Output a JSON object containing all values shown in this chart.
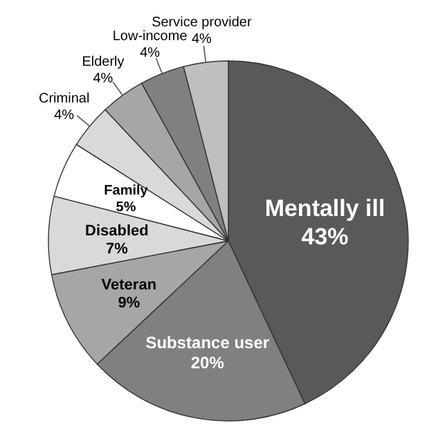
{
  "chart_data": {
    "type": "pie",
    "categories": [
      "Mentally ill",
      "Substance user",
      "Veteran",
      "Disabled",
      "Family",
      "Criminal",
      "Elderly",
      "Low-income",
      "Service provider"
    ],
    "values": [
      43,
      20,
      9,
      7,
      5,
      4,
      4,
      4,
      4
    ],
    "value_labels": [
      "43%",
      "20%",
      "9%",
      "7%",
      "5%",
      "4%",
      "4%",
      "4%",
      "4%"
    ],
    "colors": [
      "#595959",
      "#808080",
      "#a6a6a6",
      "#d9d9d9",
      "#ffffff",
      "#d9d9d9",
      "#a6a6a6",
      "#808080",
      "#bfbfbf"
    ],
    "legend": false
  }
}
